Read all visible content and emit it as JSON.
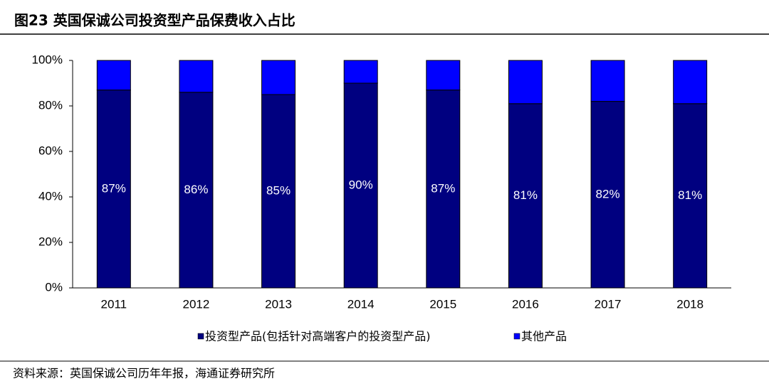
{
  "chart_data": {
    "type": "stacked_bar",
    "title": "图23 英国保诚公司投资型产品保费收入占比",
    "source": "资料来源：英国保诚公司历年年报，海通证券研究所",
    "categories": [
      "2011",
      "2012",
      "2013",
      "2014",
      "2015",
      "2016",
      "2017",
      "2018"
    ],
    "series": [
      {
        "name": "投资型产品(包括针对高端客户的投资型产品)",
        "color": "#000080",
        "values": [
          87,
          86,
          85,
          90,
          87,
          81,
          82,
          81
        ],
        "value_labels": [
          "87%",
          "86%",
          "85%",
          "90%",
          "87%",
          "81%",
          "82%",
          "81%"
        ]
      },
      {
        "name": "其他产品",
        "color": "#0000ff",
        "values": [
          13,
          14,
          15,
          10,
          13,
          19,
          18,
          19
        ]
      }
    ],
    "ylim": [
      0,
      100
    ],
    "yticks": [
      {
        "value": 0,
        "label": "0%"
      },
      {
        "value": 20,
        "label": "20%"
      },
      {
        "value": 40,
        "label": "40%"
      },
      {
        "value": 60,
        "label": "60%"
      },
      {
        "value": 80,
        "label": "80%"
      },
      {
        "value": 100,
        "label": "100%"
      }
    ]
  }
}
